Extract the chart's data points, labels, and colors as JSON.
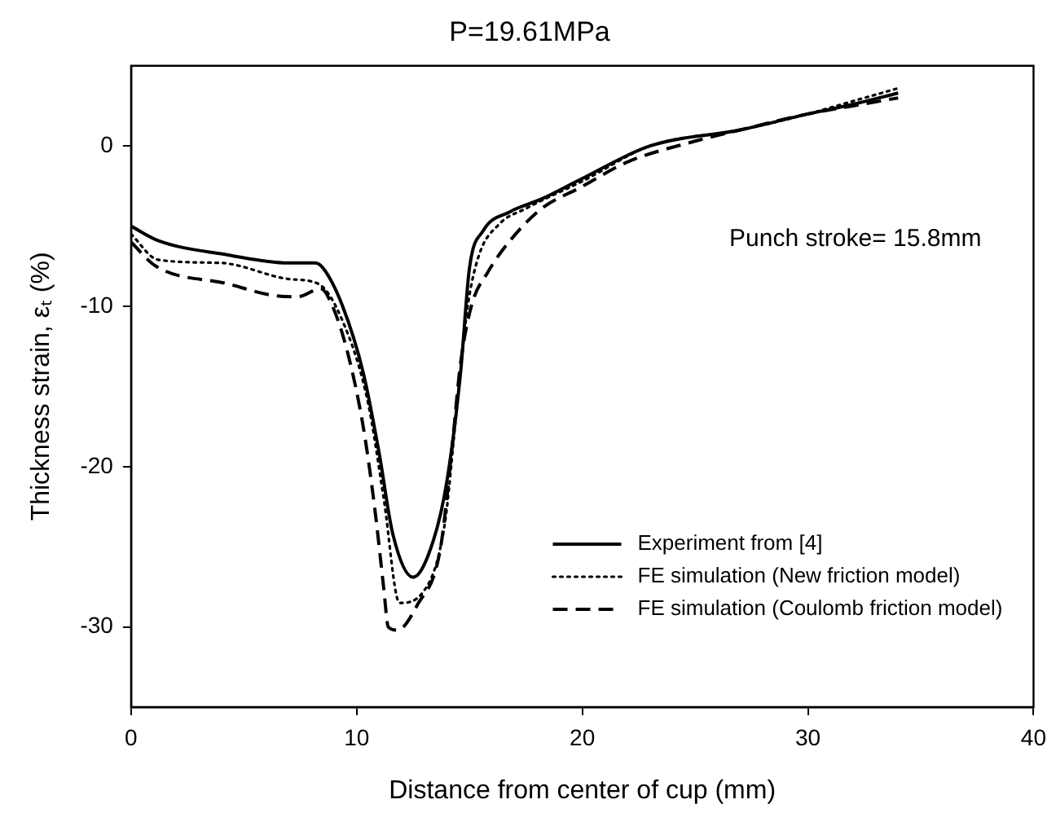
{
  "chart_data": {
    "type": "line",
    "title": "P=19.61MPa",
    "xlabel": "Distance from center of cup (mm)",
    "ylabel": "Thickness strain, εₜ (%)",
    "annotations": [
      "Punch stroke= 15.8mm"
    ],
    "xlim": [
      0,
      40
    ],
    "xticks": [
      0,
      10,
      20,
      30,
      40
    ],
    "ylim": [
      -35,
      5
    ],
    "yticks": [
      -30,
      -20,
      -10,
      0
    ],
    "grid": false,
    "legend": "bottom right",
    "marker": "none",
    "series": [
      {
        "name": "Experiment from [4]",
        "color": "#000000",
        "line_style": "solid",
        "x": [
          0,
          1.2,
          4.3,
          6.95,
          8.15,
          8.5,
          9.35,
          10.3,
          11.0,
          11.6,
          12.5,
          13.4,
          14.0,
          14.6,
          15.0,
          15.6,
          16.8,
          18.2,
          19.9,
          23,
          27,
          30,
          32,
          34
        ],
        "values": [
          -5.0,
          -5.9,
          -6.8,
          -7.3,
          -7.3,
          -7.6,
          -9.9,
          -14.2,
          -19.2,
          -24.2,
          -26.9,
          -24.6,
          -20.9,
          -14.2,
          -7.6,
          -5.3,
          -4.1,
          -3.3,
          -2.1,
          0,
          1,
          2,
          2.6,
          3.3
        ]
      },
      {
        "name": "FE simulation (New friction model)",
        "color": "#000000",
        "line_style": "dotted",
        "x": [
          0,
          1.2,
          4,
          7,
          8.3,
          9.4,
          10.5,
          11.2,
          11.9,
          12.9,
          13.9,
          14.4,
          14.9,
          15.4,
          16.3,
          17.5,
          20,
          23,
          27,
          30,
          32,
          34
        ],
        "values": [
          -5.5,
          -7.1,
          -7.3,
          -8.3,
          -8.6,
          -11,
          -16,
          -22,
          -28.5,
          -27.9,
          -23.6,
          -16.9,
          -10.2,
          -6.9,
          -4.9,
          -3.9,
          -2.2,
          0,
          1,
          2,
          2.8,
          3.6
        ]
      },
      {
        "name": "FE simulation (Coulomb friction model)",
        "color": "#000000",
        "line_style": "dashed",
        "x": [
          0,
          1.1,
          4.3,
          6.2,
          7.4,
          8.4,
          8.9,
          9.6,
          10.3,
          10.8,
          11.2,
          11.4,
          11.8,
          12.7,
          13.7,
          14.2,
          14.6,
          15.1,
          15.8,
          16.8,
          18.2,
          19.9,
          22,
          25,
          27,
          30,
          32,
          34
        ],
        "values": [
          -6.0,
          -7.5,
          -8.6,
          -9.3,
          -9.4,
          -8.9,
          -9.9,
          -12.9,
          -17.6,
          -22.6,
          -27.6,
          -30.0,
          -30.2,
          -28.6,
          -25.2,
          -19.2,
          -13.6,
          -9.9,
          -7.9,
          -5.9,
          -3.9,
          -2.6,
          -1.0,
          0.3,
          1,
          2,
          2.5,
          3.0
        ]
      }
    ]
  }
}
